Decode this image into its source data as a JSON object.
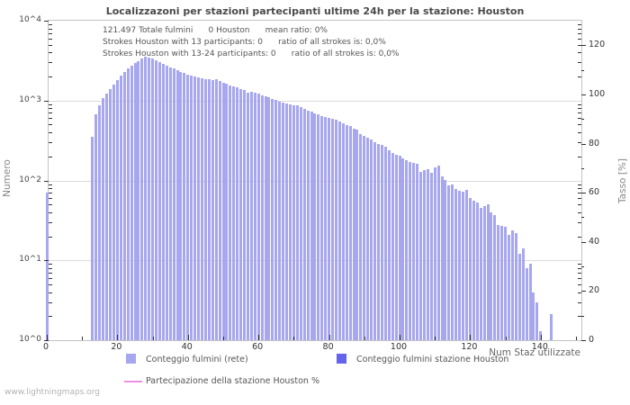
{
  "title": "Localizzazoni per stazioni partecipanti ultime 24h per la stazione: Houston",
  "annotations": {
    "line1": "121.497 Totale fulmini      0 Houston      mean ratio: 0%",
    "line2": "Strokes Houston with 13 participants: 0      ratio of all strokes is: 0,0%",
    "line3": "Strokes Houston with 13-24 participants: 0      ratio of all strokes is: 0,0%"
  },
  "axes": {
    "left": {
      "label": "Numero",
      "ticks": [
        "10^4",
        "10^3",
        "10^2",
        "10^1",
        "10^0"
      ]
    },
    "right": {
      "label": "Tasso [%]",
      "ticks": [
        0,
        20,
        40,
        60,
        80,
        100,
        120
      ]
    },
    "bottom": {
      "label": "Num Staz utilizzate",
      "ticks": [
        0,
        20,
        40,
        60,
        80,
        100,
        120,
        140
      ]
    }
  },
  "legend": {
    "items": [
      {
        "label": "Conteggio fulmini (rete)",
        "color": "#a7a7ef",
        "swatch": "square"
      },
      {
        "label": "Conteggio fulmini stazione Houston",
        "color": "#6363ee",
        "swatch": "square"
      },
      {
        "label": "Partecipazione della stazione Houston %",
        "color": "#ee90e2",
        "swatch": "line"
      }
    ]
  },
  "watermark": "www.lightningmaps.org",
  "colors": {
    "bar": "#a7a7ef",
    "bar_station": "#6363ee",
    "participation_line": "#ee90e2",
    "grid": "#dcdcdc",
    "frame": "#c4c4c4"
  },
  "chart_data": {
    "type": "bar",
    "title": "Localizzazoni per stazioni partecipanti ultime 24h per la stazione: Houston",
    "xlabel": "Num Staz utilizzate",
    "ylabel_left": "Numero",
    "ylabel_right": "Tasso [%]",
    "y_scale": "log",
    "ylim": [
      1,
      10000
    ],
    "xlim": [
      0,
      151
    ],
    "right_ylim": [
      0,
      130
    ],
    "grid": true,
    "legend_position": "bottom",
    "series_note": "points are [num_stations, stroke_count]; station Houston series and participation % are all zero",
    "points": [
      [
        0,
        70
      ],
      [
        13,
        350
      ],
      [
        14,
        680
      ],
      [
        15,
        880
      ],
      [
        16,
        1080
      ],
      [
        17,
        1230
      ],
      [
        18,
        1380
      ],
      [
        19,
        1600
      ],
      [
        20,
        1800
      ],
      [
        21,
        2050
      ],
      [
        22,
        2300
      ],
      [
        23,
        2550
      ],
      [
        24,
        2750
      ],
      [
        25,
        2950
      ],
      [
        26,
        3150
      ],
      [
        27,
        3350
      ],
      [
        28,
        3500
      ],
      [
        29,
        3450
      ],
      [
        30,
        3350
      ],
      [
        31,
        3200
      ],
      [
        32,
        3050
      ],
      [
        33,
        2850
      ],
      [
        34,
        2700
      ],
      [
        35,
        2600
      ],
      [
        36,
        2500
      ],
      [
        37,
        2400
      ],
      [
        38,
        2300
      ],
      [
        39,
        2200
      ],
      [
        40,
        2100
      ],
      [
        41,
        2050
      ],
      [
        42,
        2000
      ],
      [
        43,
        1950
      ],
      [
        44,
        1900
      ],
      [
        45,
        1870
      ],
      [
        46,
        1840
      ],
      [
        47,
        1820
      ],
      [
        48,
        1870
      ],
      [
        49,
        1760
      ],
      [
        50,
        1690
      ],
      [
        51,
        1640
      ],
      [
        52,
        1560
      ],
      [
        53,
        1490
      ],
      [
        54,
        1450
      ],
      [
        55,
        1410
      ],
      [
        56,
        1360
      ],
      [
        57,
        1240
      ],
      [
        58,
        1280
      ],
      [
        59,
        1250
      ],
      [
        60,
        1210
      ],
      [
        61,
        1170
      ],
      [
        62,
        1130
      ],
      [
        63,
        1090
      ],
      [
        64,
        1050
      ],
      [
        65,
        1010
      ],
      [
        66,
        980
      ],
      [
        67,
        950
      ],
      [
        68,
        920
      ],
      [
        69,
        890
      ],
      [
        70,
        870
      ],
      [
        71,
        870
      ],
      [
        72,
        820
      ],
      [
        73,
        780
      ],
      [
        74,
        750
      ],
      [
        75,
        720
      ],
      [
        76,
        700
      ],
      [
        77,
        670
      ],
      [
        78,
        640
      ],
      [
        79,
        620
      ],
      [
        80,
        610
      ],
      [
        81,
        590
      ],
      [
        82,
        570
      ],
      [
        83,
        550
      ],
      [
        84,
        520
      ],
      [
        85,
        495
      ],
      [
        86,
        475
      ],
      [
        87,
        450
      ],
      [
        88,
        430
      ],
      [
        89,
        385
      ],
      [
        90,
        360
      ],
      [
        91,
        340
      ],
      [
        92,
        325
      ],
      [
        93,
        300
      ],
      [
        94,
        287
      ],
      [
        95,
        278
      ],
      [
        96,
        262
      ],
      [
        97,
        238
      ],
      [
        98,
        220
      ],
      [
        99,
        212
      ],
      [
        100,
        205
      ],
      [
        101,
        190
      ],
      [
        102,
        180
      ],
      [
        103,
        172
      ],
      [
        104,
        168
      ],
      [
        105,
        162
      ],
      [
        106,
        128
      ],
      [
        107,
        136
      ],
      [
        108,
        140
      ],
      [
        109,
        125
      ],
      [
        110,
        146
      ],
      [
        111,
        152
      ],
      [
        112,
        112
      ],
      [
        113,
        102
      ],
      [
        114,
        86
      ],
      [
        115,
        90
      ],
      [
        116,
        78
      ],
      [
        117,
        74
      ],
      [
        118,
        72
      ],
      [
        119,
        76
      ],
      [
        120,
        60
      ],
      [
        121,
        56
      ],
      [
        122,
        53
      ],
      [
        123,
        45
      ],
      [
        124,
        48
      ],
      [
        125,
        50
      ],
      [
        126,
        40
      ],
      [
        127,
        37
      ],
      [
        128,
        28
      ],
      [
        129,
        27
      ],
      [
        130,
        26
      ],
      [
        131,
        21
      ],
      [
        132,
        24
      ],
      [
        133,
        22
      ],
      [
        134,
        12
      ],
      [
        135,
        14
      ],
      [
        136,
        8
      ],
      [
        137,
        9
      ],
      [
        138,
        4
      ],
      [
        139,
        3
      ],
      [
        140,
        1.3
      ],
      [
        143,
        2.1
      ]
    ]
  }
}
